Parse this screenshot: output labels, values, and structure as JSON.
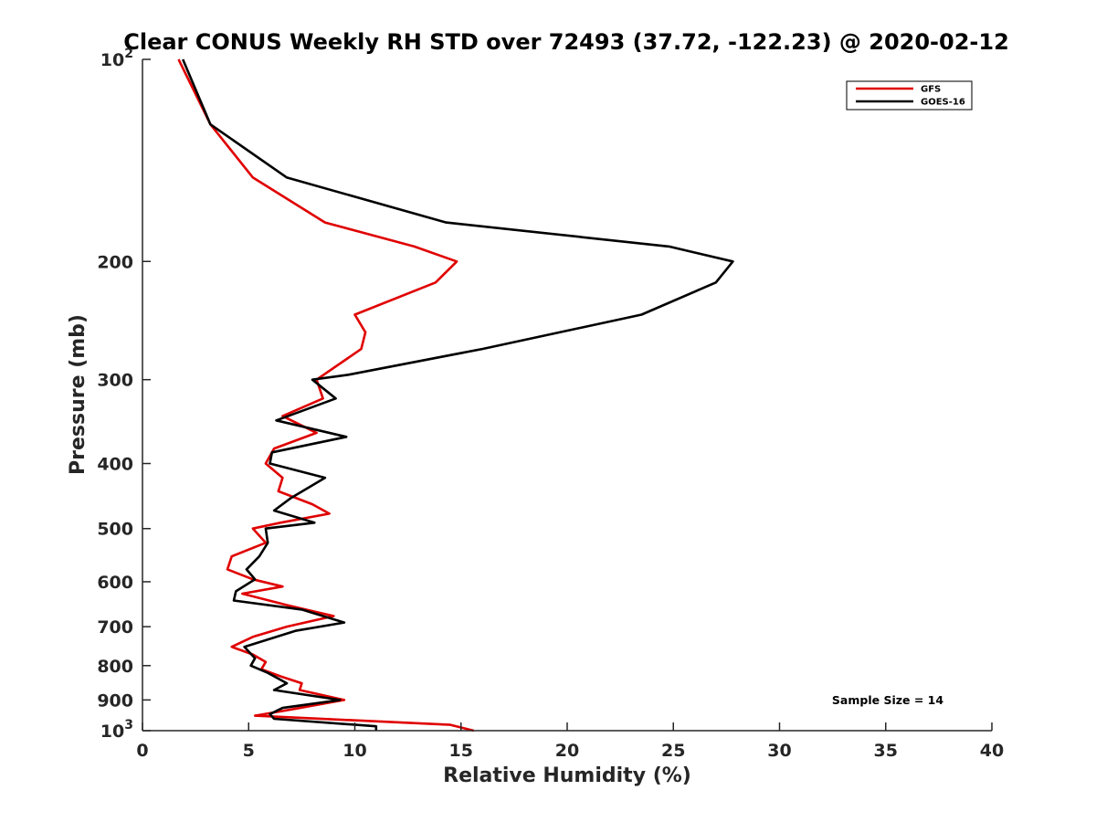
{
  "chart_data": {
    "type": "line",
    "title": "Clear CONUS Weekly RH STD over 72493 (37.72, -122.23) @ 2020-02-12",
    "xlabel": "Relative Humidity (%)",
    "ylabel": "Pressure (mb)",
    "xlim": [
      0,
      40
    ],
    "ylim": [
      100,
      1000
    ],
    "yscale": "log",
    "y_reversed": true,
    "x_ticks": [
      0,
      5,
      10,
      15,
      20,
      25,
      30,
      35,
      40
    ],
    "x_tick_labels": [
      "0",
      "5",
      "10",
      "15",
      "20",
      "25",
      "30",
      "35",
      "40"
    ],
    "y_ticks": [
      100,
      200,
      300,
      400,
      500,
      600,
      700,
      800,
      900,
      1000
    ],
    "y_tick_labels": [
      {
        "value": 100,
        "base": "10",
        "exp": "2"
      },
      {
        "value": 200,
        "base": "200",
        "exp": ""
      },
      {
        "value": 300,
        "base": "300",
        "exp": ""
      },
      {
        "value": 400,
        "base": "400",
        "exp": ""
      },
      {
        "value": 500,
        "base": "500",
        "exp": ""
      },
      {
        "value": 600,
        "base": "600",
        "exp": ""
      },
      {
        "value": 700,
        "base": "700",
        "exp": ""
      },
      {
        "value": 800,
        "base": "800",
        "exp": ""
      },
      {
        "value": 900,
        "base": "900",
        "exp": ""
      },
      {
        "value": 1000,
        "base": "10",
        "exp": "3"
      }
    ],
    "legend_position": "top-right",
    "grid": false,
    "annotation": "Sample Size = 14",
    "series": [
      {
        "name": "GFS",
        "color": "#e00000",
        "points": [
          [
            1.7,
            100
          ],
          [
            3.2,
            125
          ],
          [
            5.2,
            150
          ],
          [
            8.6,
            175
          ],
          [
            12.8,
            190
          ],
          [
            14.8,
            200
          ],
          [
            13.8,
            215
          ],
          [
            10.0,
            240
          ],
          [
            10.5,
            255
          ],
          [
            10.3,
            270
          ],
          [
            8.2,
            300
          ],
          [
            8.5,
            320
          ],
          [
            6.6,
            340
          ],
          [
            8.2,
            360
          ],
          [
            6.2,
            380
          ],
          [
            5.8,
            400
          ],
          [
            6.6,
            420
          ],
          [
            6.4,
            440
          ],
          [
            8.0,
            460
          ],
          [
            8.8,
            475
          ],
          [
            6.5,
            490
          ],
          [
            5.2,
            500
          ],
          [
            5.8,
            525
          ],
          [
            4.2,
            550
          ],
          [
            4.0,
            575
          ],
          [
            5.2,
            595
          ],
          [
            6.6,
            610
          ],
          [
            4.7,
            625
          ],
          [
            6.8,
            650
          ],
          [
            9.0,
            675
          ],
          [
            6.8,
            700
          ],
          [
            5.2,
            725
          ],
          [
            4.2,
            750
          ],
          [
            5.2,
            770
          ],
          [
            5.8,
            790
          ],
          [
            5.6,
            810
          ],
          [
            6.5,
            830
          ],
          [
            7.5,
            850
          ],
          [
            7.4,
            870
          ],
          [
            9.5,
            900
          ],
          [
            7.0,
            930
          ],
          [
            5.3,
            950
          ],
          [
            14.5,
            980
          ],
          [
            15.6,
            1000
          ]
        ]
      },
      {
        "name": "GOES-16",
        "color": "#000000",
        "points": [
          [
            1.9,
            100
          ],
          [
            3.2,
            125
          ],
          [
            6.8,
            150
          ],
          [
            14.3,
            175
          ],
          [
            24.8,
            190
          ],
          [
            27.8,
            200
          ],
          [
            27.0,
            215
          ],
          [
            23.5,
            240
          ],
          [
            16.0,
            270
          ],
          [
            9.7,
            295
          ],
          [
            8.0,
            300
          ],
          [
            9.1,
            320
          ],
          [
            6.3,
            345
          ],
          [
            9.6,
            365
          ],
          [
            6.1,
            385
          ],
          [
            6.0,
            400
          ],
          [
            8.6,
            420
          ],
          [
            7.0,
            450
          ],
          [
            6.2,
            470
          ],
          [
            8.1,
            490
          ],
          [
            5.8,
            500
          ],
          [
            5.9,
            525
          ],
          [
            5.5,
            550
          ],
          [
            4.9,
            575
          ],
          [
            5.3,
            595
          ],
          [
            4.4,
            620
          ],
          [
            4.3,
            640
          ],
          [
            7.5,
            660
          ],
          [
            9.5,
            690
          ],
          [
            7.2,
            710
          ],
          [
            4.8,
            750
          ],
          [
            5.3,
            780
          ],
          [
            5.1,
            800
          ],
          [
            5.9,
            820
          ],
          [
            6.8,
            850
          ],
          [
            6.2,
            870
          ],
          [
            9.3,
            900
          ],
          [
            6.6,
            925
          ],
          [
            6.0,
            945
          ],
          [
            6.2,
            960
          ],
          [
            11.0,
            985
          ],
          [
            11.0,
            1000
          ]
        ]
      }
    ]
  }
}
